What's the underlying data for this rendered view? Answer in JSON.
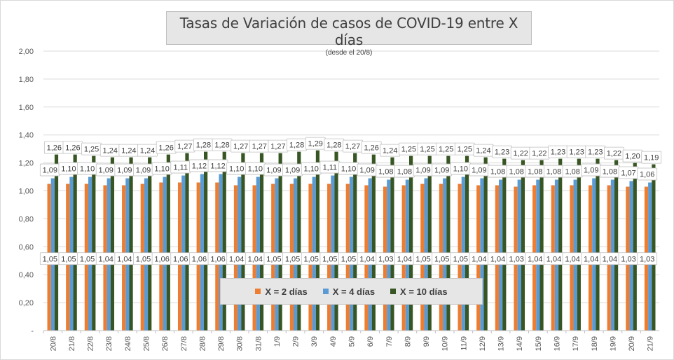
{
  "chart_data": {
    "type": "bar",
    "title": "Tasas de Variación de casos de COVID-19 entre X días",
    "subtitle": "(desde el 20/8)",
    "xlabel": "",
    "ylabel": "",
    "ylim": [
      0,
      2
    ],
    "y_ticks": [
      "-",
      "0,20",
      "0,40",
      "0,60",
      "0,80",
      "1,00",
      "1,20",
      "1,40",
      "1,60",
      "1,80",
      "2,00"
    ],
    "grid": "horizontal",
    "legend_position": "bottom-center",
    "categories": [
      "20/8",
      "21/8",
      "22/8",
      "23/8",
      "24/8",
      "25/8",
      "26/8",
      "27/8",
      "28/8",
      "29/8",
      "30/8",
      "31/8",
      "1/9",
      "2/9",
      "3/9",
      "4/9",
      "5/9",
      "6/9",
      "7/9",
      "8/9",
      "9/9",
      "10/9",
      "11/9",
      "12/9",
      "13/9",
      "14/9",
      "15/9",
      "16/9",
      "17/9",
      "18/9",
      "19/9",
      "20/9",
      "21/9"
    ],
    "series": [
      {
        "name": "X = 2 días",
        "color": "#ed7d31",
        "values": [
          1.05,
          1.05,
          1.05,
          1.04,
          1.04,
          1.05,
          1.06,
          1.06,
          1.06,
          1.06,
          1.04,
          1.04,
          1.05,
          1.05,
          1.05,
          1.05,
          1.05,
          1.04,
          1.03,
          1.04,
          1.05,
          1.05,
          1.05,
          1.04,
          1.04,
          1.03,
          1.04,
          1.04,
          1.04,
          1.04,
          1.04,
          1.03,
          1.03
        ],
        "labels": [
          "1,05",
          "1,05",
          "1,05",
          "1,04",
          "1,04",
          "1,05",
          "1,06",
          "1,06",
          "1,06",
          "1,06",
          "1,04",
          "1,04",
          "1,05",
          "1,05",
          "1,05",
          "1,05",
          "1,05",
          "1,04",
          "1,03",
          "1,04",
          "1,05",
          "1,05",
          "1,05",
          "1,04",
          "1,04",
          "1,03",
          "1,04",
          "1,04",
          "1,04",
          "1,04",
          "1,04",
          "1,03",
          "1,03"
        ]
      },
      {
        "name": "X = 4 días",
        "color": "#5b9bd5",
        "values": [
          1.09,
          1.1,
          1.1,
          1.09,
          1.09,
          1.09,
          1.1,
          1.11,
          1.12,
          1.12,
          1.1,
          1.1,
          1.09,
          1.09,
          1.1,
          1.11,
          1.1,
          1.09,
          1.08,
          1.08,
          1.09,
          1.09,
          1.1,
          1.09,
          1.08,
          1.08,
          1.08,
          1.08,
          1.08,
          1.09,
          1.08,
          1.07,
          1.06
        ],
        "labels": [
          "1,09",
          "1,10",
          "1,10",
          "1,09",
          "1,09",
          "1,09",
          "1,10",
          "1,11",
          "1,12",
          "1,12",
          "1,10",
          "1,10",
          "1,09",
          "1,09",
          "1,10",
          "1,11",
          "1,10",
          "1,09",
          "1,08",
          "1,08",
          "1,09",
          "1,09",
          "1,10",
          "1,09",
          "1,08",
          "1,08",
          "1,08",
          "1,08",
          "1,08",
          "1,09",
          "1,08",
          "1,07",
          "1,06"
        ]
      },
      {
        "name": "X = 10 días",
        "color": "#375623",
        "values": [
          1.26,
          1.26,
          1.25,
          1.24,
          1.24,
          1.24,
          1.26,
          1.27,
          1.28,
          1.28,
          1.27,
          1.27,
          1.27,
          1.28,
          1.29,
          1.28,
          1.27,
          1.26,
          1.24,
          1.25,
          1.25,
          1.25,
          1.25,
          1.24,
          1.23,
          1.22,
          1.22,
          1.23,
          1.23,
          1.23,
          1.22,
          1.2,
          1.19
        ],
        "labels": [
          "1,26",
          "1,26",
          "1,25",
          "1,24",
          "1,24",
          "1,24",
          "1,26",
          "1,27",
          "1,28",
          "1,28",
          "1,27",
          "1,27",
          "1,27",
          "1,28",
          "1,29",
          "1,28",
          "1,27",
          "1,26",
          "1,24",
          "1,25",
          "1,25",
          "1,25",
          "1,25",
          "1,24",
          "1,23",
          "1,22",
          "1,22",
          "1,23",
          "1,23",
          "1,23",
          "1,22",
          "1,20",
          "1,19"
        ]
      }
    ]
  }
}
